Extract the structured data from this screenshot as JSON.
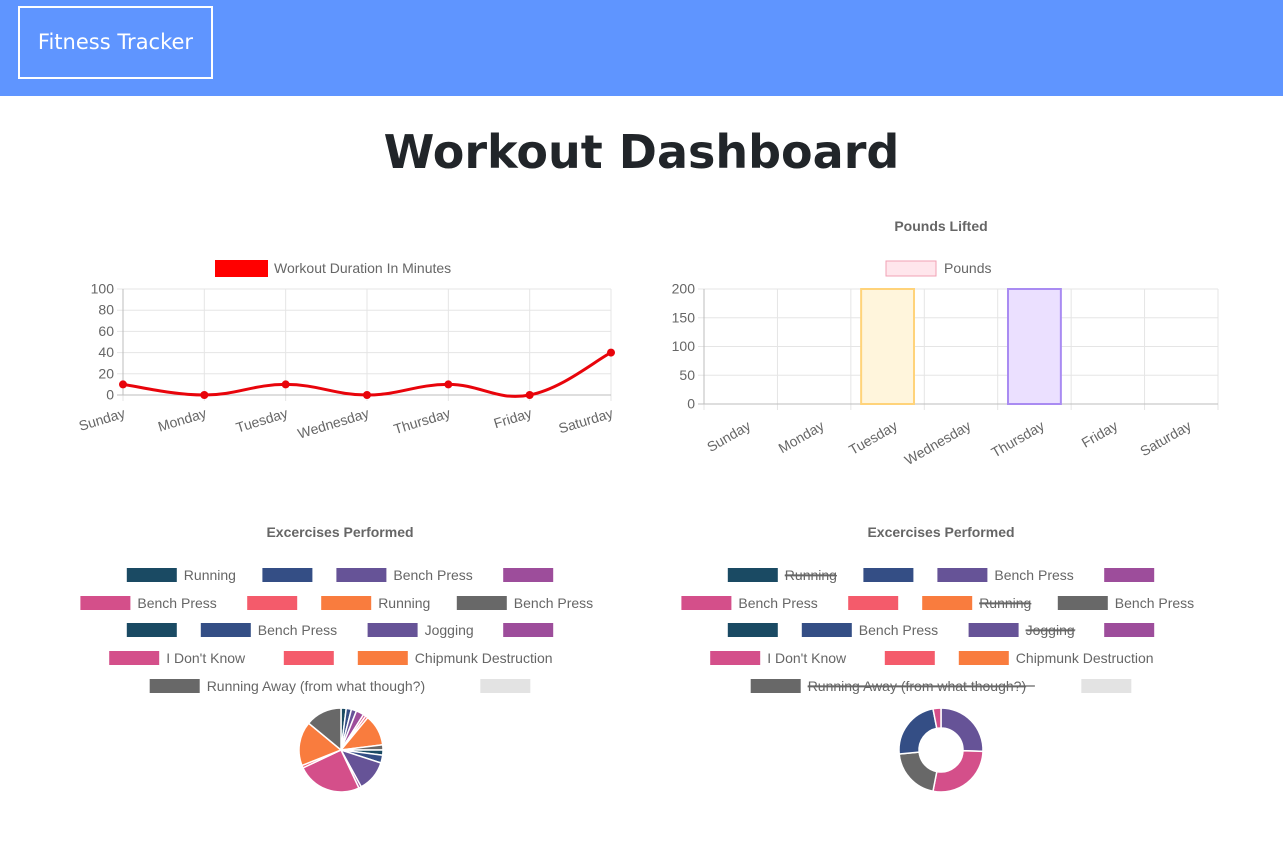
{
  "navbar": {
    "brand": "Fitness Tracker"
  },
  "page": {
    "title": "Workout Dashboard"
  },
  "colors": {
    "navbar": "#5f95ff",
    "line": "#e8040b",
    "grid": "#e5e5e5",
    "text": "#666666",
    "palette": [
      "#1a4a63",
      "#344e85",
      "#665397",
      "#9d4d9b",
      "#d44f8a",
      "#f45b6b",
      "#f97c3e",
      "#686868",
      "#e3e3e3"
    ]
  },
  "chart_data": [
    {
      "type": "line",
      "title": "",
      "legend": {
        "position": "top",
        "label": "Workout Duration In Minutes",
        "color": "#ff0000"
      },
      "categories": [
        "Sunday",
        "Monday",
        "Tuesday",
        "Wednesday",
        "Thursday",
        "Friday",
        "Saturday"
      ],
      "series": [
        {
          "name": "Workout Duration In Minutes",
          "values": [
            10,
            0,
            10,
            0,
            10,
            0,
            40
          ]
        }
      ],
      "ylim": [
        0,
        100
      ],
      "yticks": [
        "100",
        "80",
        "60",
        "40",
        "20",
        "0"
      ],
      "grid": true
    },
    {
      "type": "bar",
      "title": "Pounds Lifted",
      "legend": {
        "position": "top",
        "label": "Pounds"
      },
      "categories": [
        "Sunday",
        "Monday",
        "Tuesday",
        "Wednesday",
        "Thursday",
        "Friday",
        "Saturday"
      ],
      "series": [
        {
          "name": "Pounds",
          "values": [
            0,
            0,
            200,
            0,
            200,
            0,
            0
          ]
        }
      ],
      "bar_fills": [
        "#ffe6ec",
        "#ffe6ec",
        "#fff5dc",
        "#ffe6ec",
        "#ebe0ff",
        "#ffe6ec",
        "#ffe6ec"
      ],
      "bar_borders": [
        "#f2a1b4",
        "#f2a1b4",
        "#ffd37a",
        "#f2a1b4",
        "#a98bf2",
        "#f2a1b4",
        "#f2a1b4"
      ],
      "ylim": [
        0,
        200
      ],
      "yticks": [
        "200",
        "150",
        "100",
        "50",
        "0"
      ],
      "grid": true
    },
    {
      "type": "pie",
      "title": "Excercises Performed",
      "legend": {
        "position": "top",
        "items": [
          {
            "label": "Running",
            "color": "#1a4a63",
            "hidden": false
          },
          {
            "label": "",
            "color": "#344e85",
            "hidden": false
          },
          {
            "label": "Bench Press",
            "color": "#665397",
            "hidden": false
          },
          {
            "label": "",
            "color": "#9d4d9b",
            "hidden": false
          },
          {
            "label": "Bench Press",
            "color": "#d44f8a",
            "hidden": false
          },
          {
            "label": "",
            "color": "#f45b6b",
            "hidden": false
          },
          {
            "label": "Running",
            "color": "#f97c3e",
            "hidden": false
          },
          {
            "label": "Bench Press",
            "color": "#686868",
            "hidden": false
          },
          {
            "label": "",
            "color": "#1a4a63",
            "hidden": false
          },
          {
            "label": "Bench Press",
            "color": "#344e85",
            "hidden": false
          },
          {
            "label": "Jogging",
            "color": "#665397",
            "hidden": false
          },
          {
            "label": "",
            "color": "#9d4d9b",
            "hidden": false
          },
          {
            "label": "I Don't Know",
            "color": "#d44f8a",
            "hidden": false
          },
          {
            "label": "",
            "color": "#f45b6b",
            "hidden": false
          },
          {
            "label": "Chipmunk Destruction",
            "color": "#f97c3e",
            "hidden": false
          },
          {
            "label": "Running Away (from what though?)",
            "color": "#686868",
            "hidden": false
          },
          {
            "label": "",
            "color": "#e3e3e3",
            "hidden": false
          }
        ]
      },
      "slices": [
        {
          "value": 2,
          "color": "#1a4a63"
        },
        {
          "value": 2,
          "color": "#344e85"
        },
        {
          "value": 2,
          "color": "#665397"
        },
        {
          "value": 3,
          "color": "#9d4d9b"
        },
        {
          "value": 1,
          "color": "#d44f8a"
        },
        {
          "value": 1,
          "color": "#f45b6b"
        },
        {
          "value": 12,
          "color": "#f97c3e"
        },
        {
          "value": 2,
          "color": "#686868"
        },
        {
          "value": 2,
          "color": "#1a4a63"
        },
        {
          "value": 3,
          "color": "#344e85"
        },
        {
          "value": 12,
          "color": "#665397"
        },
        {
          "value": 1,
          "color": "#9d4d9b"
        },
        {
          "value": 25,
          "color": "#d44f8a"
        },
        {
          "value": 1,
          "color": "#f45b6b"
        },
        {
          "value": 17,
          "color": "#f97c3e"
        },
        {
          "value": 14,
          "color": "#686868"
        }
      ]
    },
    {
      "type": "doughnut",
      "title": "Excercises Performed",
      "legend": {
        "position": "top",
        "items": [
          {
            "label": "Running",
            "color": "#1a4a63",
            "hidden": true
          },
          {
            "label": "",
            "color": "#344e85",
            "hidden": false
          },
          {
            "label": "Bench Press",
            "color": "#665397",
            "hidden": false
          },
          {
            "label": "",
            "color": "#9d4d9b",
            "hidden": false
          },
          {
            "label": "Bench Press",
            "color": "#d44f8a",
            "hidden": false
          },
          {
            "label": "",
            "color": "#f45b6b",
            "hidden": false
          },
          {
            "label": "Running",
            "color": "#f97c3e",
            "hidden": true
          },
          {
            "label": "Bench Press",
            "color": "#686868",
            "hidden": false
          },
          {
            "label": "",
            "color": "#1a4a63",
            "hidden": false
          },
          {
            "label": "Bench Press",
            "color": "#344e85",
            "hidden": false
          },
          {
            "label": "Jogging",
            "color": "#665397",
            "hidden": true
          },
          {
            "label": "",
            "color": "#9d4d9b",
            "hidden": false
          },
          {
            "label": "I Don't Know",
            "color": "#d44f8a",
            "hidden": false
          },
          {
            "label": "",
            "color": "#f45b6b",
            "hidden": false
          },
          {
            "label": "Chipmunk Destruction",
            "color": "#f97c3e",
            "hidden": false
          },
          {
            "label": "Running Away (from what though?)",
            "color": "#686868",
            "hidden": true
          },
          {
            "label": "",
            "color": "#e3e3e3",
            "hidden": false
          }
        ]
      },
      "slices": [
        {
          "value": 25,
          "color": "#665397"
        },
        {
          "value": 27,
          "color": "#d44f8a"
        },
        {
          "value": 20,
          "color": "#686868"
        },
        {
          "value": 23,
          "color": "#344e85"
        },
        {
          "value": 3,
          "color": "#d44f8a"
        }
      ]
    }
  ]
}
